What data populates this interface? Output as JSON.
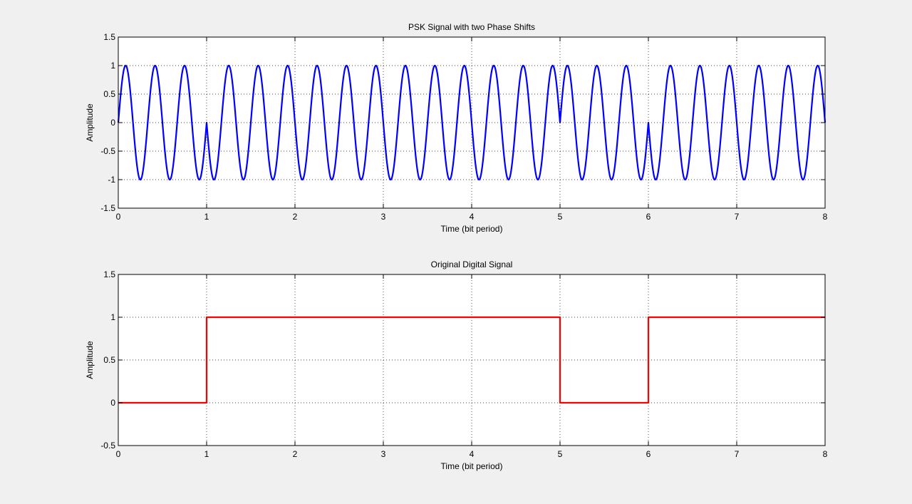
{
  "figure": {
    "background": "#f0f0f0"
  },
  "chart_data": [
    {
      "type": "line",
      "title": "PSK Signal with two Phase Shifts",
      "xlabel": "Time (bit period)",
      "ylabel": "Amplitude",
      "xlim": [
        0,
        8
      ],
      "ylim": [
        -1.5,
        1.5
      ],
      "xticks": [
        0,
        1,
        2,
        3,
        4,
        5,
        6,
        7,
        8
      ],
      "yticks": [
        -1.5,
        -1,
        -0.5,
        0,
        0.5,
        1,
        1.5
      ],
      "xtick_labels": [
        "0",
        "1",
        "2",
        "3",
        "4",
        "5",
        "6",
        "7",
        "8"
      ],
      "ytick_labels": [
        "-1.5",
        "-1",
        "-0.5",
        "0",
        "0.5",
        "1",
        "1.5"
      ],
      "grid": true,
      "grid_style": "dotted",
      "series": [
        {
          "color": "#0000ff",
          "function": "sin(2*pi*3*t + phase)",
          "carrier_cycles_per_bit": 3,
          "bits": [
            0,
            1,
            1,
            1,
            1,
            0,
            1,
            1
          ],
          "phase_for_bit_0_rad": 0,
          "phase_for_bit_1_rad": 3.14159
        }
      ]
    },
    {
      "type": "line",
      "title": "Original Digital Signal",
      "xlabel": "Time (bit period)",
      "ylabel": "Amplitude",
      "xlim": [
        0,
        8
      ],
      "ylim": [
        -0.5,
        1.5
      ],
      "xticks": [
        0,
        1,
        2,
        3,
        4,
        5,
        6,
        7,
        8
      ],
      "yticks": [
        -0.5,
        0,
        0.5,
        1,
        1.5
      ],
      "xtick_labels": [
        "0",
        "1",
        "2",
        "3",
        "4",
        "5",
        "6",
        "7",
        "8"
      ],
      "ytick_labels": [
        "-0.5",
        "0",
        "0.5",
        "1",
        "1.5"
      ],
      "grid": true,
      "grid_style": "dotted",
      "series": [
        {
          "color": "#ff0000",
          "x": [
            0,
            1,
            1,
            5,
            5,
            6,
            6,
            8
          ],
          "y": [
            0,
            0,
            1,
            1,
            0,
            0,
            1,
            1
          ]
        }
      ]
    }
  ]
}
